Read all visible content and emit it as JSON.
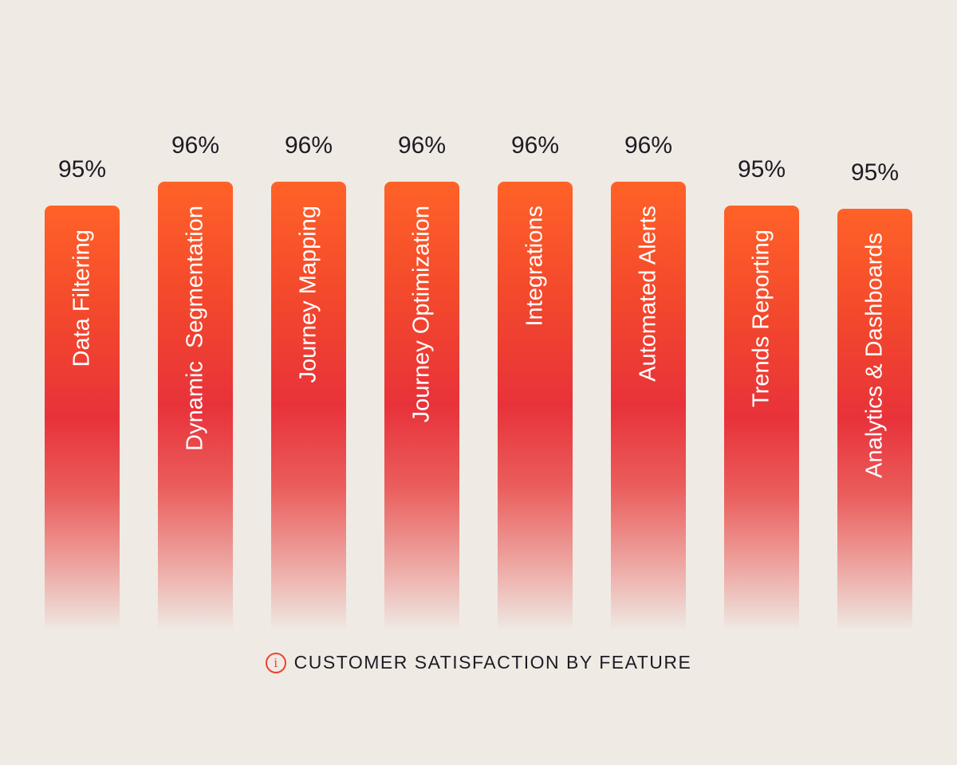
{
  "chart_data": {
    "type": "bar",
    "title": "CUSTOMER SATISFACTION BY FEATURE",
    "categories": [
      "Data Filtering",
      "Dynamic  Segmentation",
      "Journey Mapping",
      "Journey Optimization",
      "Integrations",
      "Automated Alerts",
      "Trends Reporting",
      "Analytics & Dashboards"
    ],
    "values": [
      95,
      96,
      96,
      96,
      96,
      96,
      95,
      95
    ],
    "value_labels": [
      "95%",
      "96%",
      "96%",
      "96%",
      "96%",
      "96%",
      "95%",
      "95%"
    ],
    "xlabel": "",
    "ylabel": "",
    "grid": false,
    "legend": "none"
  },
  "caption": {
    "text": "CUSTOMER SATISFACTION BY FEATURE",
    "icon": "info-icon"
  },
  "colors": {
    "bar_top": "#ff6228",
    "bar_mid": "#e8323a",
    "background": "#efeae4",
    "text": "#1f1a24"
  }
}
